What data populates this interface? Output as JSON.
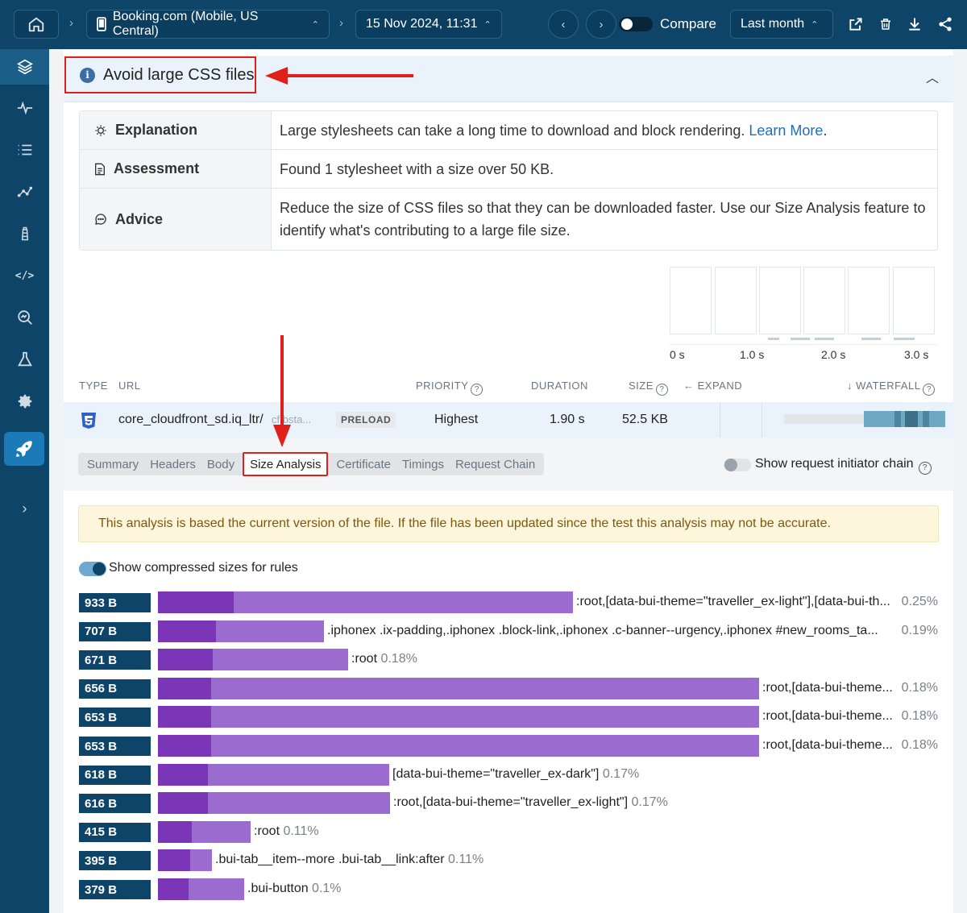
{
  "topbar": {
    "site": "Booking.com (Mobile, US Central)",
    "date": "15 Nov 2024, 11:31",
    "compare_label": "Compare",
    "range": "Last month"
  },
  "audit": {
    "title": "Avoid large CSS files",
    "rows": [
      {
        "label": "Explanation",
        "value": "Large stylesheets can take a long time to download and block rendering.",
        "link": "Learn More",
        "suffix": "."
      },
      {
        "label": "Assessment",
        "value": "Found 1 stylesheet with a size over 50 KB."
      },
      {
        "label": "Advice",
        "value": "Reduce the size of CSS files so that they can be downloaded faster. Use our Size Analysis feature to identify what's contributing to a large file size."
      }
    ]
  },
  "waterfall_ticks": [
    "0 s",
    "1.0 s",
    "2.0 s",
    "3.0 s"
  ],
  "columns": {
    "type": "TYPE",
    "url": "URL",
    "priority": "PRIORITY",
    "duration": "DURATION",
    "size": "SIZE",
    "expand": "EXPAND",
    "waterfall": "WATERFALL"
  },
  "request": {
    "url": "core_cloudfront_sd.iq_ltr/",
    "host": "cf.bsta...",
    "badge": "PRELOAD",
    "priority": "Highest",
    "duration": "1.90 s",
    "size": "52.5 KB"
  },
  "tabs": [
    "Summary",
    "Headers",
    "Body",
    "Size Analysis",
    "Certificate",
    "Timings",
    "Request Chain"
  ],
  "active_tab": "Size Analysis",
  "initiator_label": "Show request initiator chain",
  "notice": "This analysis is based the current version of the file. If the file has been updated since the test this analysis may not be accurate.",
  "compressed_label": "Show compressed sizes for rules",
  "rules": [
    {
      "size": "933 B",
      "selector": ":root,[data-bui-theme=\"traveller_ex-light\"],[data-bui-th...",
      "pct": "0.25%",
      "pct_right": true
    },
    {
      "size": "707 B",
      "selector": ".iphonex .ix-padding,.iphonex .block-link,.iphonex .c-banner--urgency,.iphonex #new_rooms_ta...",
      "pct": "0.19%",
      "pct_right": true
    },
    {
      "size": "671 B",
      "selector": ":root",
      "pct": "0.18%",
      "pct_right": false
    },
    {
      "size": "656 B",
      "selector": ":root,[data-bui-theme...",
      "pct": "0.18%",
      "pct_right": true
    },
    {
      "size": "653 B",
      "selector": ":root,[data-bui-theme...",
      "pct": "0.18%",
      "pct_right": true
    },
    {
      "size": "653 B",
      "selector": ":root,[data-bui-theme...",
      "pct": "0.18%",
      "pct_right": true
    },
    {
      "size": "618 B",
      "selector": "[data-bui-theme=\"traveller_ex-dark\"]",
      "pct": "0.17%",
      "pct_right": false
    },
    {
      "size": "616 B",
      "selector": ":root,[data-bui-theme=\"traveller_ex-light\"]",
      "pct": "0.17%",
      "pct_right": false
    },
    {
      "size": "415 B",
      "selector": ":root",
      "pct": "0.11%",
      "pct_right": false
    },
    {
      "size": "395 B",
      "selector": ".bui-tab__item--more .bui-tab__link:after",
      "pct": "0.11%",
      "pct_right": false
    },
    {
      "size": "379 B",
      "selector": ".bui-button",
      "pct": "0.1%",
      "pct_right": false
    }
  ],
  "colors": {
    "nav": "#0d4467",
    "accent": "#1b6fc0",
    "bar_compressed": "#7b35b7",
    "bar_full": "#9c6bd0",
    "highlight": "#e0201b"
  }
}
